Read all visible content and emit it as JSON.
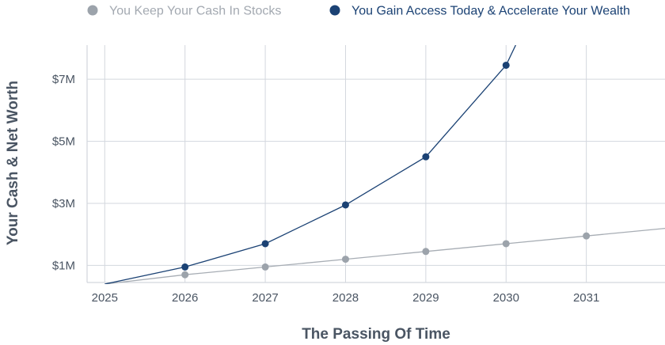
{
  "chart_data": {
    "type": "line",
    "xlabel": "The Passing Of Time",
    "ylabel": "Your Cash & Net Worth",
    "x_ticks": [
      "2025",
      "2026",
      "2027",
      "2028",
      "2029",
      "2030",
      "2031"
    ],
    "y_ticks": [
      {
        "value": 1,
        "label": "$1M"
      },
      {
        "value": 3,
        "label": "$3M"
      },
      {
        "value": 5,
        "label": "$5M"
      },
      {
        "value": 7,
        "label": "$7M"
      }
    ],
    "xlim": [
      2024.78,
      2031.98
    ],
    "ylim": [
      0.45,
      8.1
    ],
    "grid": true,
    "legend_position": "top",
    "series": [
      {
        "name": "You Keep Your Cash In Stocks",
        "color": "#9ca3ab",
        "text_color": "#a3a9b1",
        "line_color": "#a7adb4",
        "x": [
          2025,
          2026,
          2027,
          2028,
          2029,
          2030,
          2031,
          2032
        ],
        "y": [
          0.4,
          0.7,
          0.95,
          1.2,
          1.45,
          1.7,
          1.95,
          2.2
        ],
        "markers": [
          false,
          true,
          true,
          true,
          true,
          true,
          true,
          false
        ]
      },
      {
        "name": "You Gain Access Today & Accelerate Your Wealth",
        "color": "#1b4274",
        "text_color": "#1b4274",
        "line_color": "#1b4274",
        "x": [
          2025,
          2026,
          2027,
          2028,
          2029,
          2030,
          2030.12
        ],
        "y": [
          0.4,
          0.95,
          1.7,
          2.95,
          4.5,
          7.45,
          8.1
        ],
        "markers": [
          false,
          true,
          true,
          true,
          true,
          true,
          false
        ]
      }
    ]
  }
}
